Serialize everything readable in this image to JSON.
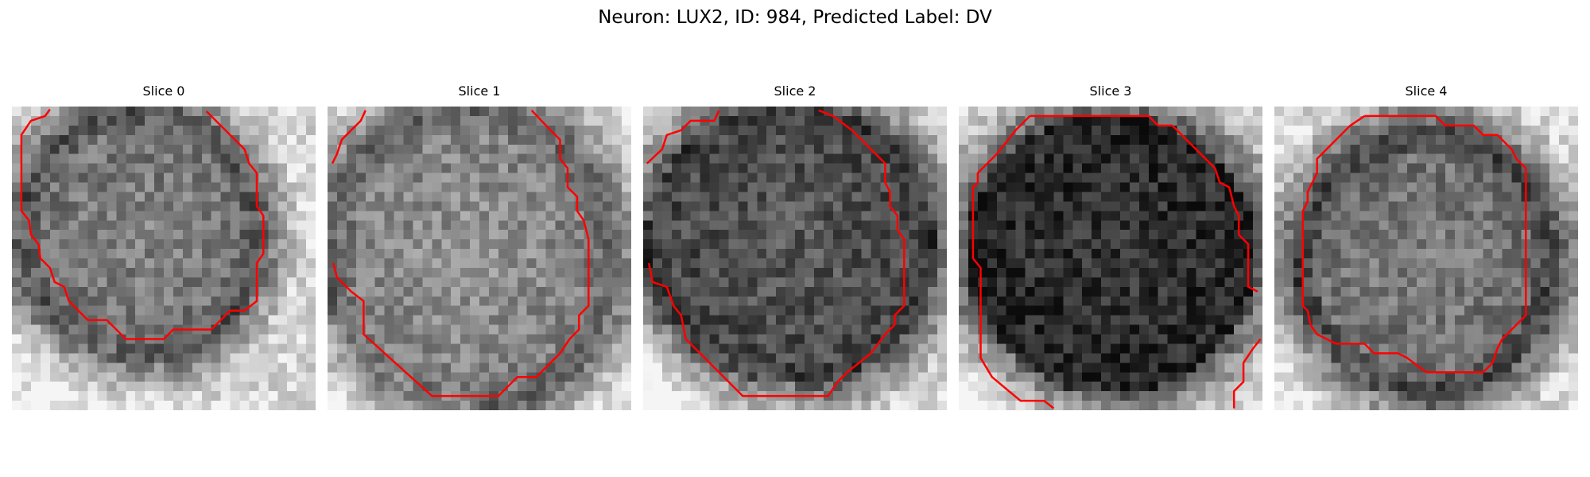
{
  "figure": {
    "title": "Neuron: LUX2, ID: 984, Predicted Label: DV"
  },
  "slices": [
    {
      "title": "Slice 0",
      "contour_color": "#ff0000"
    },
    {
      "title": "Slice 1",
      "contour_color": "#ff0000"
    },
    {
      "title": "Slice 2",
      "contour_color": "#ff0000"
    },
    {
      "title": "Slice 3",
      "contour_color": "#ff0000"
    },
    {
      "title": "Slice 4",
      "contour_color": "#ff0000"
    }
  ]
}
